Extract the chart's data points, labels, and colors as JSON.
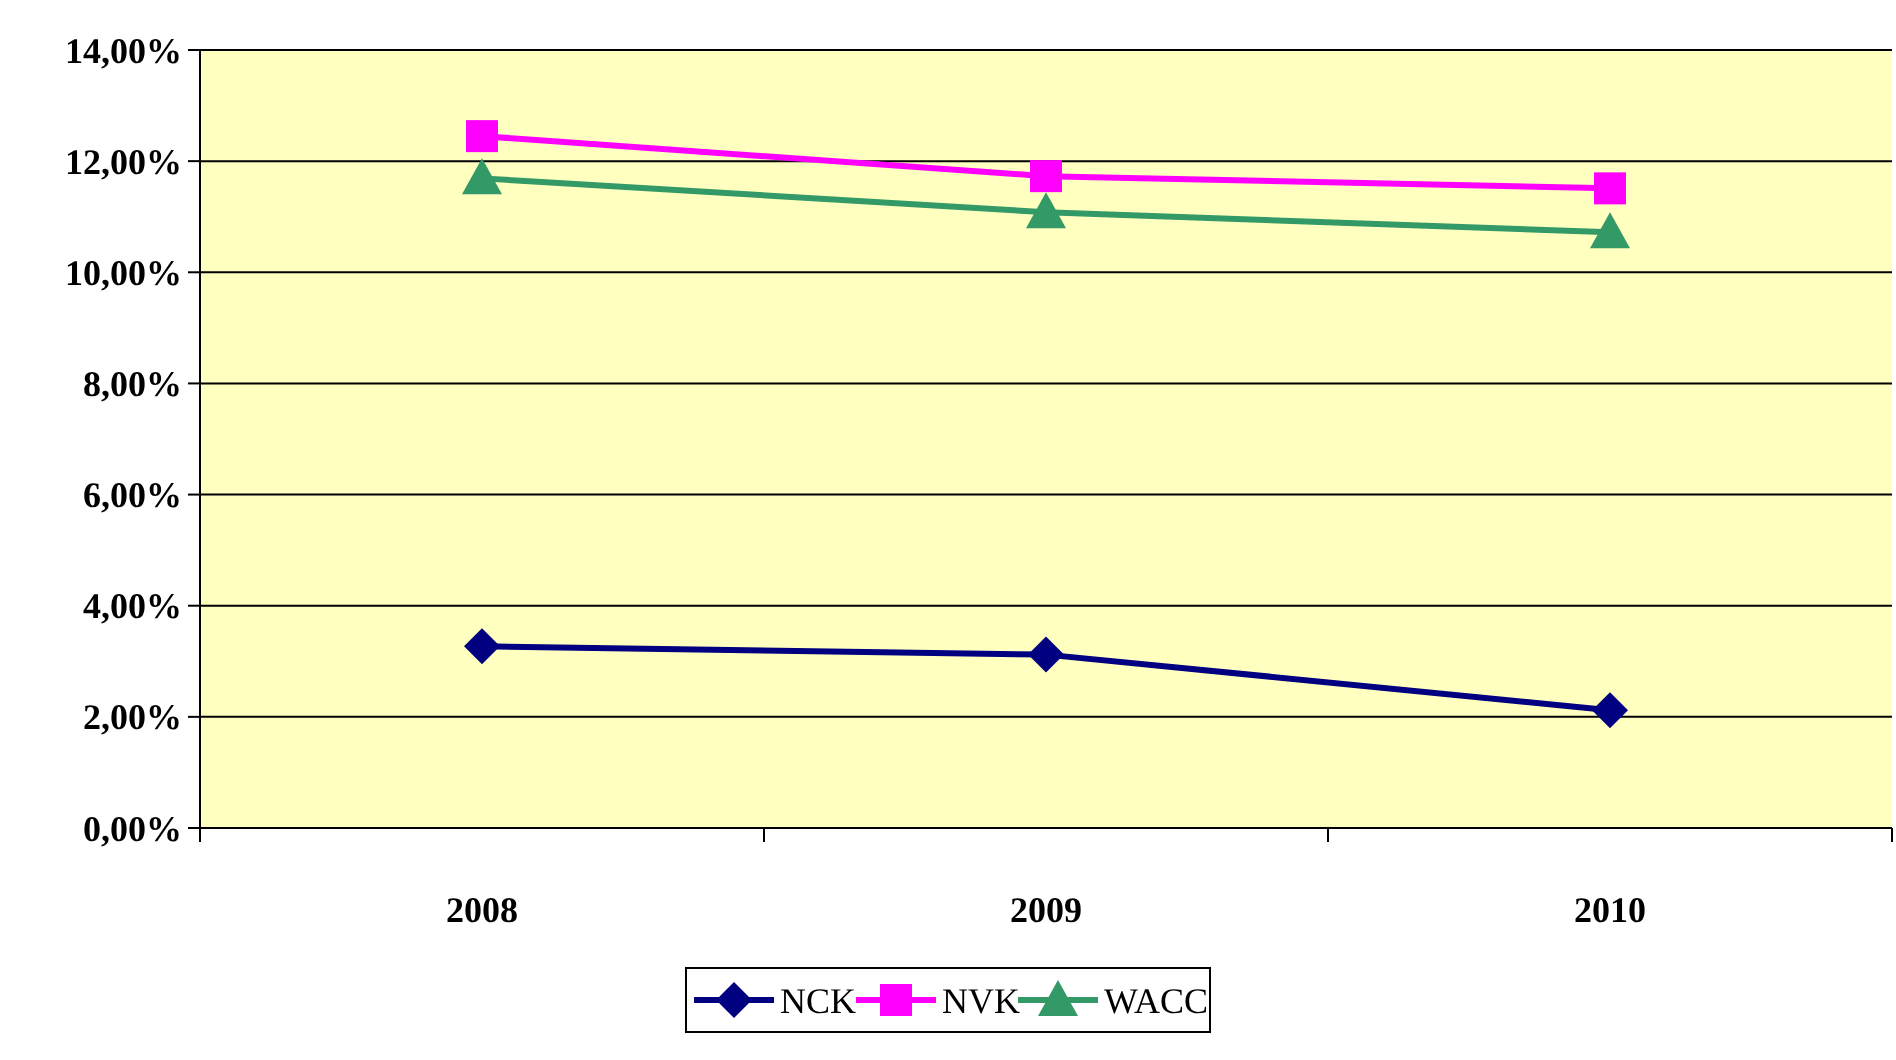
{
  "chart_data": {
    "type": "line",
    "categories": [
      "2008",
      "2009",
      "2010"
    ],
    "series": [
      {
        "name": "NCK",
        "color": "#000080",
        "values": [
          3.27,
          3.12,
          2.12
        ],
        "marker": "diamond"
      },
      {
        "name": "NVK",
        "color": "#ff00ff",
        "values": [
          12.45,
          11.73,
          11.51
        ],
        "marker": "square"
      },
      {
        "name": "WACC",
        "color": "#339966",
        "values": [
          11.69,
          11.08,
          10.72
        ],
        "marker": "triangle"
      }
    ],
    "ylim": [
      0,
      14
    ],
    "yticks": [
      {
        "value": 0,
        "label": "0,00%"
      },
      {
        "value": 2,
        "label": "2,00%"
      },
      {
        "value": 4,
        "label": "4,00%"
      },
      {
        "value": 6,
        "label": "6,00%"
      },
      {
        "value": 8,
        "label": "8,00%"
      },
      {
        "value": 10,
        "label": "10,00%"
      },
      {
        "value": 12,
        "label": "12,00%"
      },
      {
        "value": 14,
        "label": "14,00%"
      }
    ],
    "grid": "y",
    "legend": "bottom",
    "line_style": "solid"
  }
}
